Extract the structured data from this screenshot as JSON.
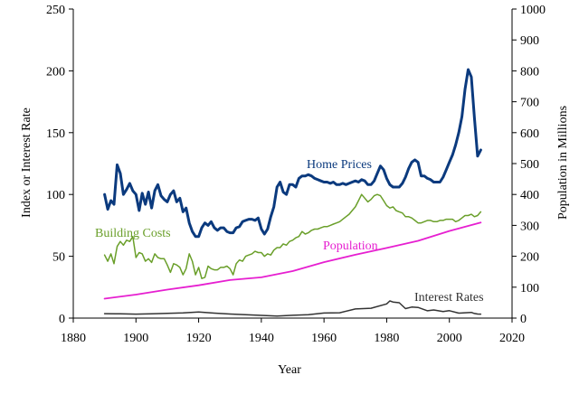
{
  "chart_data": {
    "type": "line",
    "title": "",
    "xlabel": "Year",
    "ylabel_left": "Index or Interest Rate",
    "ylabel_right": "Population in Millions",
    "xlim": [
      1880,
      2020
    ],
    "ylim_left": [
      0,
      250
    ],
    "ylim_right": [
      0,
      1000
    ],
    "grid": false,
    "legend": "inline labels",
    "x_ticks": [
      "1880",
      "1900",
      "1920",
      "1940",
      "1960",
      "1980",
      "2000",
      "2020"
    ],
    "y_left_ticks": [
      "0",
      "50",
      "100",
      "150",
      "200",
      "250"
    ],
    "y_right_ticks": [
      "0",
      "100",
      "200",
      "300",
      "400",
      "500",
      "600",
      "700",
      "800",
      "900",
      "1000"
    ],
    "series": [
      {
        "name": "Home Prices",
        "axis": "left",
        "color": "#0b3a7e",
        "points": [
          [
            1890,
            100
          ],
          [
            1891,
            88
          ],
          [
            1892,
            95
          ],
          [
            1893,
            92
          ],
          [
            1894,
            124
          ],
          [
            1895,
            117
          ],
          [
            1896,
            100
          ],
          [
            1897,
            104
          ],
          [
            1898,
            109
          ],
          [
            1899,
            103
          ],
          [
            1900,
            100
          ],
          [
            1901,
            87
          ],
          [
            1902,
            101
          ],
          [
            1903,
            92
          ],
          [
            1904,
            102
          ],
          [
            1905,
            89
          ],
          [
            1906,
            103
          ],
          [
            1907,
            108
          ],
          [
            1908,
            99
          ],
          [
            1909,
            96
          ],
          [
            1910,
            94
          ],
          [
            1911,
            100
          ],
          [
            1912,
            103
          ],
          [
            1913,
            94
          ],
          [
            1914,
            97
          ],
          [
            1915,
            86
          ],
          [
            1916,
            89
          ],
          [
            1917,
            77
          ],
          [
            1918,
            70
          ],
          [
            1919,
            66
          ],
          [
            1920,
            66
          ],
          [
            1921,
            73
          ],
          [
            1922,
            77
          ],
          [
            1923,
            75
          ],
          [
            1924,
            78
          ],
          [
            1925,
            73
          ],
          [
            1926,
            71
          ],
          [
            1927,
            73
          ],
          [
            1928,
            73
          ],
          [
            1929,
            70
          ],
          [
            1930,
            69
          ],
          [
            1931,
            69
          ],
          [
            1932,
            73
          ],
          [
            1933,
            74
          ],
          [
            1934,
            78
          ],
          [
            1935,
            79
          ],
          [
            1936,
            80
          ],
          [
            1937,
            80
          ],
          [
            1938,
            79
          ],
          [
            1939,
            81
          ],
          [
            1940,
            72
          ],
          [
            1941,
            68
          ],
          [
            1942,
            72
          ],
          [
            1943,
            82
          ],
          [
            1944,
            90
          ],
          [
            1945,
            106
          ],
          [
            1946,
            110
          ],
          [
            1947,
            102
          ],
          [
            1948,
            100
          ],
          [
            1949,
            108
          ],
          [
            1950,
            108
          ],
          [
            1951,
            106
          ],
          [
            1952,
            113
          ],
          [
            1953,
            115
          ],
          [
            1954,
            115
          ],
          [
            1955,
            116
          ],
          [
            1956,
            115
          ],
          [
            1957,
            113
          ],
          [
            1958,
            112
          ],
          [
            1959,
            111
          ],
          [
            1960,
            110
          ],
          [
            1961,
            110
          ],
          [
            1962,
            109
          ],
          [
            1963,
            110
          ],
          [
            1964,
            108
          ],
          [
            1965,
            108
          ],
          [
            1966,
            109
          ],
          [
            1967,
            108
          ],
          [
            1968,
            109
          ],
          [
            1969,
            110
          ],
          [
            1970,
            111
          ],
          [
            1971,
            110
          ],
          [
            1972,
            112
          ],
          [
            1973,
            111
          ],
          [
            1974,
            108
          ],
          [
            1975,
            108
          ],
          [
            1976,
            111
          ],
          [
            1977,
            117
          ],
          [
            1978,
            123
          ],
          [
            1979,
            120
          ],
          [
            1980,
            113
          ],
          [
            1981,
            108
          ],
          [
            1982,
            106
          ],
          [
            1983,
            106
          ],
          [
            1984,
            106
          ],
          [
            1985,
            109
          ],
          [
            1986,
            114
          ],
          [
            1987,
            121
          ],
          [
            1988,
            126
          ],
          [
            1989,
            128
          ],
          [
            1990,
            126
          ],
          [
            1991,
            115
          ],
          [
            1992,
            115
          ],
          [
            1993,
            113
          ],
          [
            1994,
            112
          ],
          [
            1995,
            110
          ],
          [
            1996,
            110
          ],
          [
            1997,
            110
          ],
          [
            1998,
            114
          ],
          [
            1999,
            120
          ],
          [
            2000,
            126
          ],
          [
            2001,
            132
          ],
          [
            2002,
            140
          ],
          [
            2003,
            150
          ],
          [
            2004,
            163
          ],
          [
            2005,
            185
          ],
          [
            2006,
            201
          ],
          [
            2007,
            195
          ],
          [
            2008,
            162
          ],
          [
            2009,
            131
          ],
          [
            2010,
            136
          ]
        ]
      },
      {
        "name": "Building Costs",
        "axis": "left",
        "color": "#6a9f2a",
        "points": [
          [
            1890,
            51
          ],
          [
            1891,
            46
          ],
          [
            1892,
            52
          ],
          [
            1893,
            44
          ],
          [
            1894,
            58
          ],
          [
            1895,
            62
          ],
          [
            1896,
            59
          ],
          [
            1897,
            63
          ],
          [
            1898,
            62
          ],
          [
            1899,
            66
          ],
          [
            1900,
            49
          ],
          [
            1901,
            53
          ],
          [
            1902,
            52
          ],
          [
            1903,
            46
          ],
          [
            1904,
            48
          ],
          [
            1905,
            45
          ],
          [
            1906,
            52
          ],
          [
            1907,
            49
          ],
          [
            1908,
            48
          ],
          [
            1909,
            48
          ],
          [
            1910,
            43
          ],
          [
            1911,
            37
          ],
          [
            1912,
            44
          ],
          [
            1913,
            43
          ],
          [
            1914,
            41
          ],
          [
            1915,
            35
          ],
          [
            1916,
            40
          ],
          [
            1917,
            52
          ],
          [
            1918,
            46
          ],
          [
            1919,
            35
          ],
          [
            1920,
            41
          ],
          [
            1921,
            32
          ],
          [
            1922,
            33
          ],
          [
            1923,
            42
          ],
          [
            1924,
            40
          ],
          [
            1925,
            39
          ],
          [
            1926,
            39
          ],
          [
            1927,
            41
          ],
          [
            1928,
            41
          ],
          [
            1929,
            42
          ],
          [
            1930,
            40
          ],
          [
            1931,
            35
          ],
          [
            1932,
            44
          ],
          [
            1933,
            47
          ],
          [
            1934,
            46
          ],
          [
            1935,
            50
          ],
          [
            1936,
            51
          ],
          [
            1937,
            52
          ],
          [
            1938,
            54
          ],
          [
            1939,
            53
          ],
          [
            1940,
            53
          ],
          [
            1941,
            50
          ],
          [
            1942,
            52
          ],
          [
            1943,
            51
          ],
          [
            1944,
            55
          ],
          [
            1945,
            57
          ],
          [
            1946,
            57
          ],
          [
            1947,
            60
          ],
          [
            1948,
            59
          ],
          [
            1949,
            62
          ],
          [
            1950,
            63
          ],
          [
            1951,
            65
          ],
          [
            1952,
            66
          ],
          [
            1953,
            70
          ],
          [
            1954,
            68
          ],
          [
            1955,
            69
          ],
          [
            1956,
            71
          ],
          [
            1957,
            72
          ],
          [
            1958,
            72
          ],
          [
            1959,
            73
          ],
          [
            1960,
            74
          ],
          [
            1961,
            74
          ],
          [
            1962,
            75
          ],
          [
            1963,
            76
          ],
          [
            1964,
            77
          ],
          [
            1965,
            78
          ],
          [
            1966,
            80
          ],
          [
            1967,
            82
          ],
          [
            1968,
            84
          ],
          [
            1969,
            87
          ],
          [
            1970,
            90
          ],
          [
            1971,
            95
          ],
          [
            1972,
            100
          ],
          [
            1973,
            97
          ],
          [
            1974,
            94
          ],
          [
            1975,
            96
          ],
          [
            1976,
            99
          ],
          [
            1977,
            100
          ],
          [
            1978,
            99
          ],
          [
            1979,
            95
          ],
          [
            1980,
            91
          ],
          [
            1981,
            89
          ],
          [
            1982,
            90
          ],
          [
            1983,
            87
          ],
          [
            1984,
            86
          ],
          [
            1985,
            85
          ],
          [
            1986,
            82
          ],
          [
            1987,
            82
          ],
          [
            1988,
            81
          ],
          [
            1989,
            79
          ],
          [
            1990,
            77
          ],
          [
            1991,
            77
          ],
          [
            1992,
            78
          ],
          [
            1993,
            79
          ],
          [
            1994,
            79
          ],
          [
            1995,
            78
          ],
          [
            1996,
            78
          ],
          [
            1997,
            79
          ],
          [
            1998,
            79
          ],
          [
            1999,
            80
          ],
          [
            2000,
            80
          ],
          [
            2001,
            80
          ],
          [
            2002,
            78
          ],
          [
            2003,
            79
          ],
          [
            2004,
            81
          ],
          [
            2005,
            83
          ],
          [
            2006,
            83
          ],
          [
            2007,
            84
          ],
          [
            2008,
            82
          ],
          [
            2009,
            83
          ],
          [
            2010,
            86
          ]
        ]
      },
      {
        "name": "Population",
        "axis": "right",
        "color": "#e61fd0",
        "points": [
          [
            1890,
            63
          ],
          [
            1900,
            76
          ],
          [
            1910,
            92
          ],
          [
            1920,
            106
          ],
          [
            1930,
            123
          ],
          [
            1940,
            132
          ],
          [
            1950,
            152
          ],
          [
            1960,
            181
          ],
          [
            1970,
            205
          ],
          [
            1980,
            227
          ],
          [
            1990,
            250
          ],
          [
            2000,
            282
          ],
          [
            2010,
            309
          ]
        ]
      },
      {
        "name": "Interest Rates",
        "axis": "left",
        "color": "#333333",
        "points": [
          [
            1890,
            3.6
          ],
          [
            1895,
            3.4
          ],
          [
            1900,
            3.2
          ],
          [
            1905,
            3.5
          ],
          [
            1910,
            3.9
          ],
          [
            1915,
            4.2
          ],
          [
            1920,
            5.0
          ],
          [
            1925,
            4.0
          ],
          [
            1930,
            3.3
          ],
          [
            1935,
            2.8
          ],
          [
            1940,
            2.2
          ],
          [
            1945,
            1.7
          ],
          [
            1950,
            2.3
          ],
          [
            1955,
            2.8
          ],
          [
            1960,
            4.1
          ],
          [
            1965,
            4.3
          ],
          [
            1970,
            7.4
          ],
          [
            1975,
            8.0
          ],
          [
            1980,
            11.5
          ],
          [
            1981,
            13.9
          ],
          [
            1982,
            13.0
          ],
          [
            1984,
            12.4
          ],
          [
            1986,
            7.7
          ],
          [
            1988,
            8.9
          ],
          [
            1990,
            8.6
          ],
          [
            1993,
            5.9
          ],
          [
            1995,
            6.6
          ],
          [
            1998,
            5.3
          ],
          [
            2000,
            6.0
          ],
          [
            2003,
            4.0
          ],
          [
            2005,
            4.3
          ],
          [
            2007,
            4.6
          ],
          [
            2008,
            3.7
          ],
          [
            2009,
            3.3
          ],
          [
            2010,
            3.2
          ]
        ]
      }
    ],
    "annotations": [
      {
        "series": "Home Prices",
        "text": "Home Prices"
      },
      {
        "series": "Building Costs",
        "text": "Building Costs"
      },
      {
        "series": "Population",
        "text": "Population"
      },
      {
        "series": "Interest Rates",
        "text": "Interest Rates"
      }
    ]
  }
}
